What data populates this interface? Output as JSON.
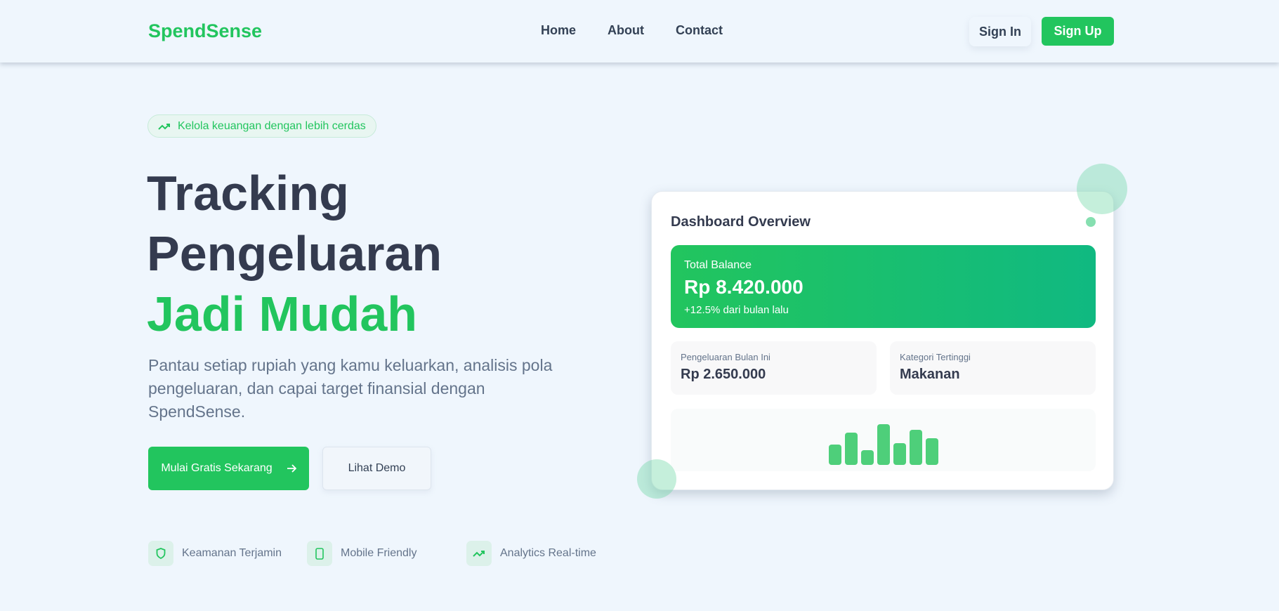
{
  "nav": {
    "logo": "SpendSense",
    "links": [
      "Home",
      "About",
      "Contact"
    ],
    "sign_in": "Sign In",
    "sign_up": "Sign Up"
  },
  "hero": {
    "badge": "Kelola keuangan dengan lebih cerdas",
    "title_line1": "Tracking",
    "title_line2": "Pengeluaran",
    "title_line3": "Jadi Mudah",
    "description": "Pantau setiap rupiah yang kamu keluarkan, analisis pola pengeluaran, dan capai target finansial dengan SpendSense.",
    "primary_button": "Mulai Gratis Sekarang",
    "secondary_button": "Lihat Demo",
    "features": [
      {
        "icon": "shield-icon",
        "label": "Keamanan Terjamin"
      },
      {
        "icon": "mobile-icon",
        "label": "Mobile Friendly"
      },
      {
        "icon": "trending-up-icon",
        "label": "Analytics Real-time"
      }
    ]
  },
  "dashboard": {
    "title": "Dashboard Overview",
    "balance_label": "Total Balance",
    "balance_value": "Rp 8.420.000",
    "balance_change": "+12.5% dari bulan lalu",
    "spending_label": "Pengeluaran Bulan Ini",
    "spending_value": "Rp 2.650.000",
    "category_label": "Kategori Tertinggi",
    "category_value": "Makanan",
    "mini_chart_levels": [
      0.5,
      0.8,
      0.36,
      1.0,
      0.54,
      0.86,
      0.66
    ]
  },
  "colors": {
    "brand": "#22c55e",
    "brand_end": "#10b981",
    "text": "#343b4f",
    "muted": "#64748b",
    "background": "#eff6fd"
  }
}
